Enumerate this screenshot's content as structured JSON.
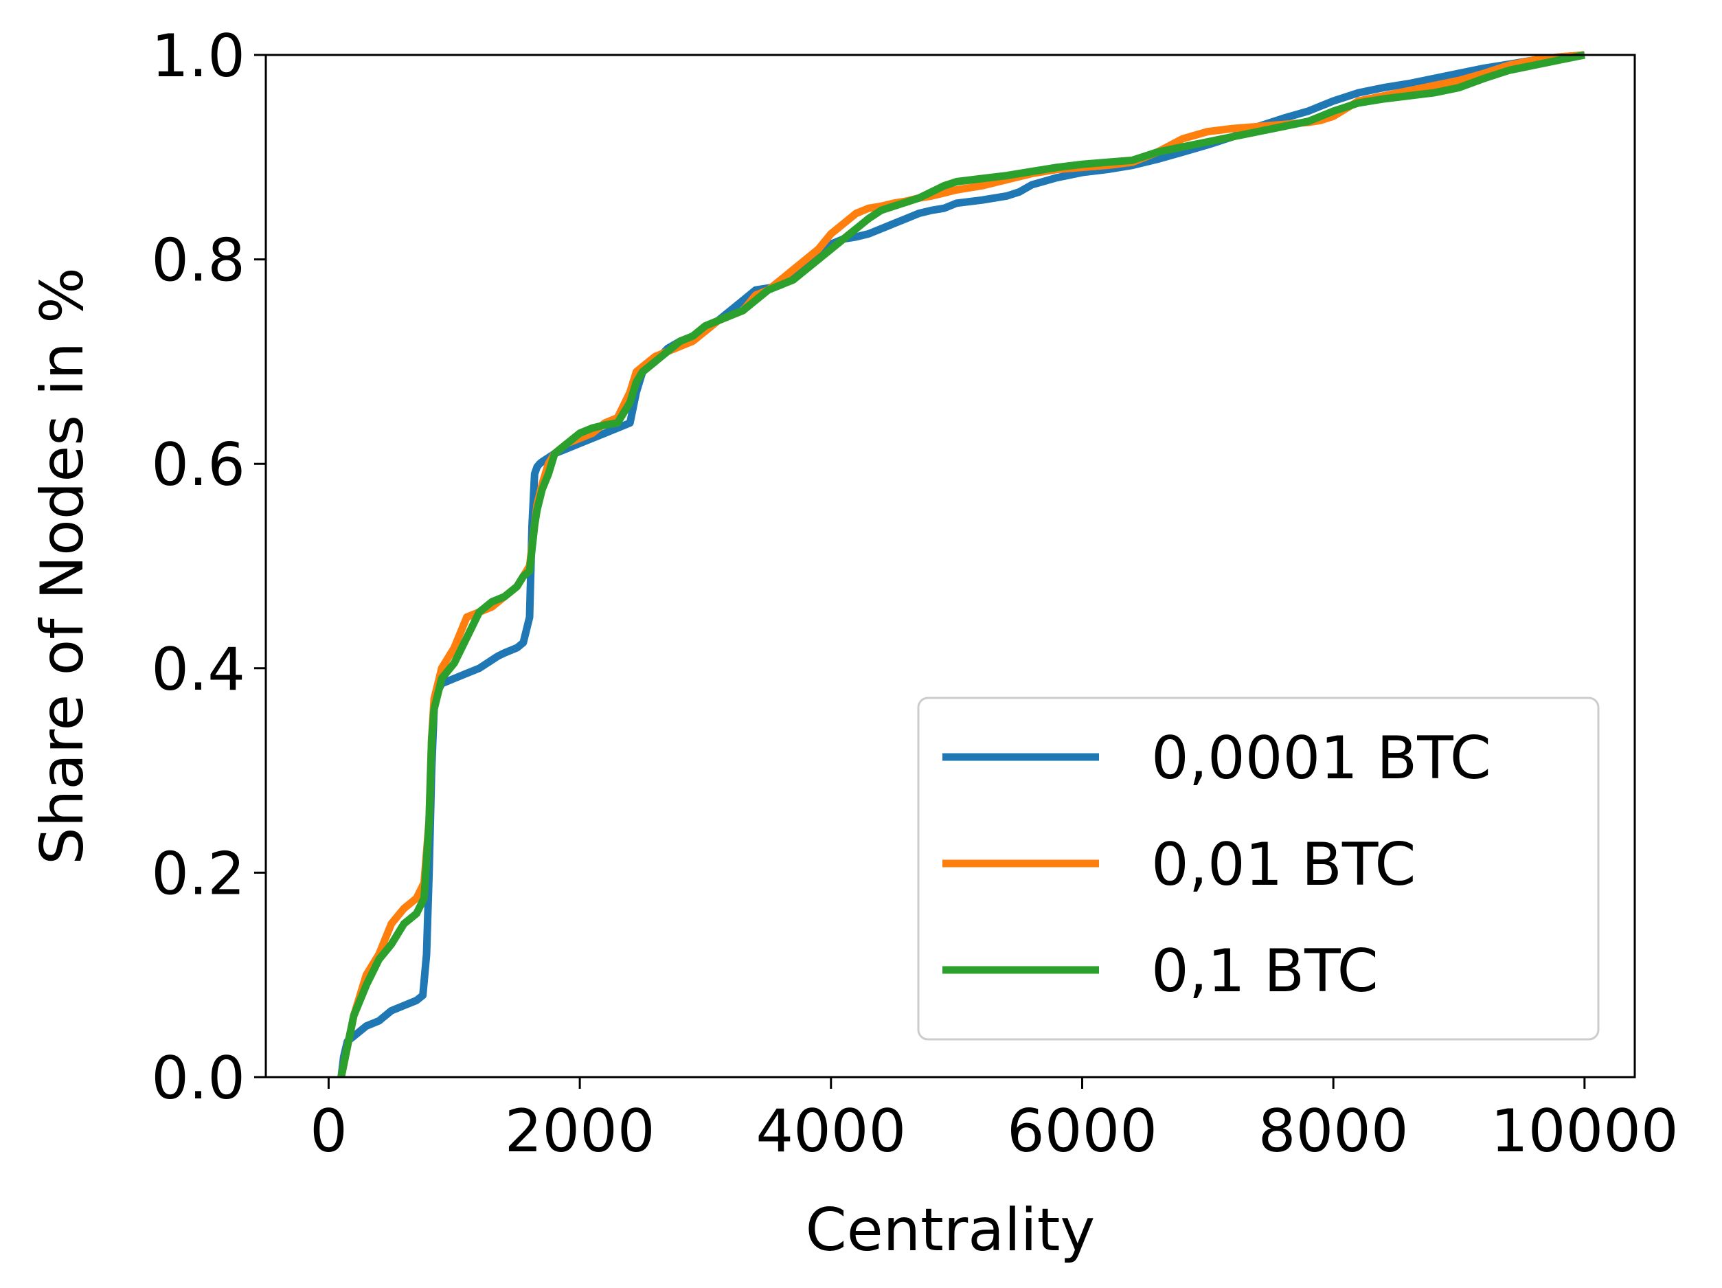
{
  "chart_data": {
    "type": "line",
    "title": "",
    "xlabel": "Centrality",
    "ylabel": "Share of Nodes in %",
    "xlim": [
      -500,
      10400
    ],
    "ylim": [
      0.0,
      1.0
    ],
    "xticks": [
      0,
      2000,
      4000,
      6000,
      8000,
      10000
    ],
    "xtick_labels": [
      "0",
      "2000",
      "4000",
      "6000",
      "8000",
      "10000"
    ],
    "yticks": [
      0.0,
      0.2,
      0.4,
      0.6,
      0.8,
      1.0
    ],
    "ytick_labels": [
      "0.0",
      "0.2",
      "0.4",
      "0.6",
      "0.8",
      "1.0"
    ],
    "grid": false,
    "legend_position": "lower-right",
    "series": [
      {
        "name": "0,0001 BTC",
        "color": "#1f77b4",
        "x": [
          100,
          120,
          150,
          200,
          300,
          400,
          500,
          600,
          700,
          750,
          780,
          800,
          820,
          840,
          860,
          900,
          1000,
          1100,
          1200,
          1300,
          1350,
          1400,
          1500,
          1550,
          1600,
          1620,
          1640,
          1660,
          1680,
          1700,
          1800,
          1900,
          2000,
          2100,
          2200,
          2300,
          2400,
          2450,
          2500,
          2600,
          2700,
          2800,
          2900,
          3000,
          3100,
          3200,
          3300,
          3400,
          3500,
          3600,
          3700,
          3800,
          3900,
          4000,
          4100,
          4200,
          4300,
          4400,
          4500,
          4600,
          4700,
          4800,
          4900,
          5000,
          5200,
          5400,
          5500,
          5600,
          5800,
          6000,
          6200,
          6400,
          6600,
          6800,
          7000,
          7200,
          7400,
          7600,
          7800,
          7900,
          8000,
          8200,
          8400,
          8600,
          8800,
          9000,
          9200,
          9400,
          9600,
          9800,
          10000
        ],
        "y": [
          0.0,
          0.02,
          0.035,
          0.04,
          0.05,
          0.055,
          0.065,
          0.07,
          0.075,
          0.08,
          0.12,
          0.2,
          0.3,
          0.36,
          0.375,
          0.385,
          0.39,
          0.395,
          0.4,
          0.408,
          0.412,
          0.415,
          0.42,
          0.425,
          0.45,
          0.54,
          0.59,
          0.597,
          0.6,
          0.602,
          0.61,
          0.615,
          0.62,
          0.625,
          0.63,
          0.635,
          0.64,
          0.67,
          0.69,
          0.7,
          0.713,
          0.72,
          0.722,
          0.73,
          0.74,
          0.75,
          0.76,
          0.77,
          0.772,
          0.775,
          0.785,
          0.795,
          0.805,
          0.815,
          0.82,
          0.822,
          0.825,
          0.83,
          0.835,
          0.84,
          0.845,
          0.848,
          0.85,
          0.855,
          0.858,
          0.862,
          0.866,
          0.873,
          0.88,
          0.885,
          0.888,
          0.892,
          0.898,
          0.905,
          0.912,
          0.92,
          0.93,
          0.938,
          0.945,
          0.95,
          0.955,
          0.963,
          0.968,
          0.972,
          0.977,
          0.982,
          0.987,
          0.991,
          0.995,
          0.998,
          1.0
        ]
      },
      {
        "name": "0,01 BTC",
        "color": "#ff7f0e",
        "x": [
          100,
          150,
          200,
          300,
          400,
          500,
          600,
          700,
          760,
          800,
          820,
          840,
          860,
          900,
          1000,
          1100,
          1200,
          1300,
          1400,
          1500,
          1550,
          1600,
          1640,
          1660,
          1700,
          1750,
          1800,
          1900,
          2000,
          2100,
          2200,
          2300,
          2400,
          2450,
          2500,
          2600,
          2700,
          2800,
          2900,
          3000,
          3100,
          3200,
          3300,
          3400,
          3500,
          3600,
          3700,
          3800,
          3900,
          4000,
          4100,
          4200,
          4300,
          4400,
          4500,
          4600,
          4700,
          4800,
          4900,
          5000,
          5200,
          5400,
          5600,
          5800,
          6000,
          6200,
          6400,
          6600,
          6800,
          7000,
          7200,
          7400,
          7600,
          7800,
          7900,
          8000,
          8200,
          8400,
          8600,
          8800,
          9000,
          9200,
          9400,
          9600,
          9800,
          10000
        ],
        "y": [
          0.0,
          0.03,
          0.06,
          0.1,
          0.12,
          0.15,
          0.165,
          0.175,
          0.19,
          0.25,
          0.33,
          0.37,
          0.38,
          0.4,
          0.42,
          0.45,
          0.455,
          0.46,
          0.47,
          0.48,
          0.49,
          0.5,
          0.54,
          0.56,
          0.58,
          0.6,
          0.61,
          0.62,
          0.625,
          0.63,
          0.64,
          0.645,
          0.67,
          0.69,
          0.695,
          0.705,
          0.71,
          0.715,
          0.72,
          0.73,
          0.74,
          0.745,
          0.75,
          0.765,
          0.77,
          0.78,
          0.79,
          0.8,
          0.81,
          0.825,
          0.835,
          0.845,
          0.85,
          0.852,
          0.855,
          0.857,
          0.86,
          0.862,
          0.865,
          0.868,
          0.872,
          0.878,
          0.884,
          0.888,
          0.89,
          0.892,
          0.895,
          0.905,
          0.918,
          0.925,
          0.928,
          0.93,
          0.932,
          0.934,
          0.936,
          0.94,
          0.955,
          0.96,
          0.965,
          0.97,
          0.975,
          0.982,
          0.99,
          0.995,
          0.998,
          1.0
        ]
      },
      {
        "name": "0,1 BTC",
        "color": "#2ca02c",
        "x": [
          100,
          150,
          200,
          300,
          400,
          500,
          600,
          700,
          760,
          800,
          820,
          840,
          860,
          900,
          1000,
          1100,
          1200,
          1300,
          1400,
          1500,
          1550,
          1600,
          1640,
          1660,
          1700,
          1750,
          1800,
          1900,
          2000,
          2100,
          2200,
          2300,
          2400,
          2450,
          2500,
          2600,
          2700,
          2800,
          2900,
          3000,
          3100,
          3200,
          3300,
          3400,
          3500,
          3600,
          3700,
          3800,
          3900,
          4000,
          4100,
          4200,
          4300,
          4400,
          4500,
          4600,
          4700,
          4800,
          4900,
          5000,
          5200,
          5400,
          5600,
          5800,
          6000,
          6200,
          6400,
          6600,
          6800,
          7000,
          7200,
          7400,
          7600,
          7800,
          7900,
          8000,
          8200,
          8400,
          8600,
          8800,
          9000,
          9200,
          9400,
          9600,
          9800,
          10000
        ],
        "y": [
          0.0,
          0.03,
          0.06,
          0.09,
          0.115,
          0.13,
          0.15,
          0.16,
          0.175,
          0.25,
          0.33,
          0.36,
          0.37,
          0.39,
          0.405,
          0.43,
          0.455,
          0.465,
          0.47,
          0.48,
          0.49,
          0.495,
          0.54,
          0.555,
          0.575,
          0.59,
          0.61,
          0.62,
          0.63,
          0.635,
          0.638,
          0.64,
          0.66,
          0.68,
          0.69,
          0.7,
          0.71,
          0.72,
          0.725,
          0.735,
          0.74,
          0.745,
          0.75,
          0.76,
          0.77,
          0.775,
          0.78,
          0.79,
          0.8,
          0.81,
          0.82,
          0.83,
          0.84,
          0.848,
          0.852,
          0.856,
          0.86,
          0.866,
          0.872,
          0.876,
          0.879,
          0.882,
          0.886,
          0.89,
          0.893,
          0.895,
          0.897,
          0.905,
          0.91,
          0.915,
          0.92,
          0.925,
          0.93,
          0.935,
          0.94,
          0.945,
          0.953,
          0.957,
          0.96,
          0.963,
          0.968,
          0.977,
          0.985,
          0.99,
          0.995,
          1.0
        ]
      }
    ]
  }
}
